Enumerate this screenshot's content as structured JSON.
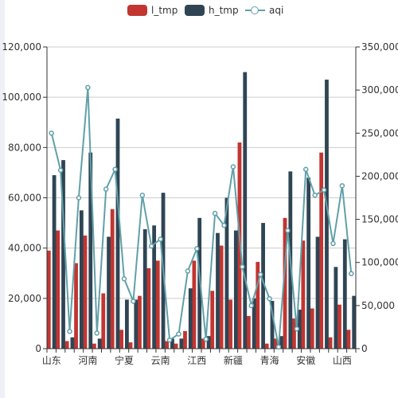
{
  "legend": [
    {
      "key": "l_tmp",
      "label": "l_tmp",
      "kind": "bar",
      "color": "#c23531"
    },
    {
      "key": "h_tmp",
      "label": "h_tmp",
      "kind": "bar",
      "color": "#2f4554"
    },
    {
      "key": "aqi",
      "label": "aqi",
      "kind": "line",
      "color": "#61a0a8"
    }
  ],
  "chart_data": {
    "type": "bar",
    "grid": true,
    "legend_position": "top-center",
    "x_tick_labels": [
      "山东",
      "河南",
      "宁夏",
      "云南",
      "江西",
      "新疆",
      "青海",
      "安徽",
      "山西"
    ],
    "y_left": {
      "min": 0,
      "max": 120000,
      "ticks": [
        "0",
        "20,000",
        "40,000",
        "60,000",
        "80,000",
        "100,000",
        "120,000"
      ]
    },
    "y_right": {
      "min": 0,
      "max": 350000,
      "ticks": [
        "0",
        "50,000",
        "100,000",
        "150,000",
        "200,000",
        "250,000",
        "300,000",
        "350,000"
      ]
    },
    "category_count": 34,
    "series": [
      {
        "name": "l_tmp",
        "type": "bar",
        "axis": "left",
        "color": "#c23531",
        "values": [
          39000,
          47000,
          3000,
          34000,
          45000,
          2000,
          22000,
          55500,
          7500,
          2500,
          21000,
          32000,
          35000,
          3000,
          2000,
          7000,
          35000,
          4000,
          23000,
          41000,
          19500,
          82000,
          13000,
          34500,
          2000,
          4000,
          52000,
          12000,
          43000,
          16000,
          78000,
          4500,
          17500,
          7500
        ]
      },
      {
        "name": "h_tmp",
        "type": "bar",
        "axis": "left",
        "color": "#2f4554",
        "values": [
          69000,
          75000,
          4500,
          55000,
          78000,
          4000,
          44500,
          91500,
          19500,
          19500,
          47500,
          49000,
          62000,
          4000,
          4000,
          24000,
          52000,
          5000,
          46000,
          60000,
          47000,
          110000,
          20000,
          50000,
          19000,
          5000,
          70500,
          15500,
          68000,
          44500,
          107000,
          32500,
          43500,
          21000
        ]
      },
      {
        "name": "aqi",
        "type": "line",
        "axis": "right",
        "color": "#61a0a8",
        "values": [
          250000,
          207000,
          20000,
          175000,
          303000,
          18000,
          185000,
          208000,
          81000,
          55000,
          178000,
          119000,
          127000,
          10000,
          17000,
          90000,
          116000,
          11000,
          157000,
          143000,
          211000,
          95000,
          50000,
          86000,
          58000,
          2000,
          137000,
          23000,
          208000,
          178000,
          184000,
          122000,
          189000,
          87000
        ]
      }
    ]
  }
}
